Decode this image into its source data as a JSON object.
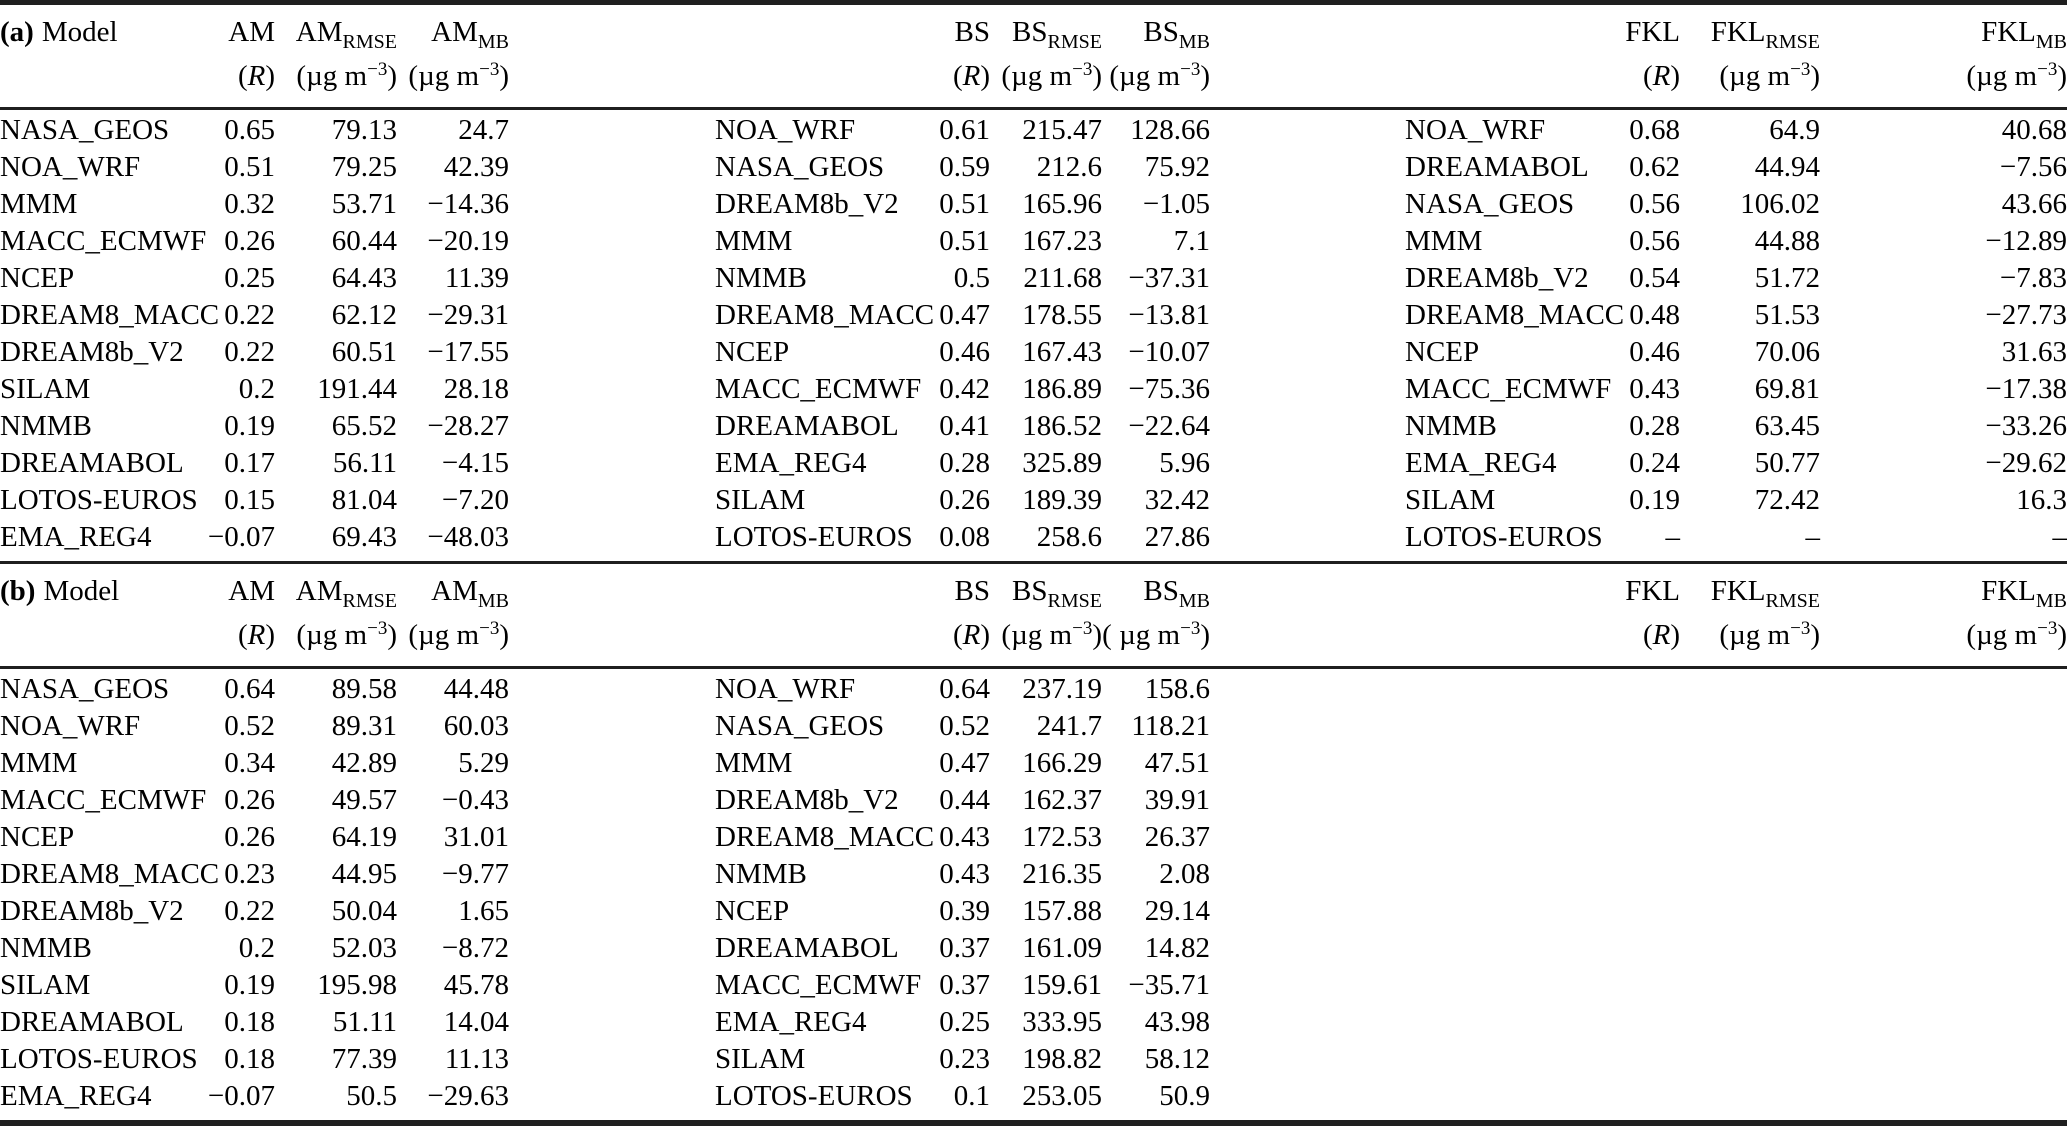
{
  "table": {
    "labels": {
      "r_pre": "(",
      "r_sym": "R",
      "r_post": ")",
      "rmse_sub": "RMSE",
      "mb_sub": "MB"
    },
    "units": {
      "standard": {
        "pre": "(µg m",
        "sup": "−3",
        "post": ")"
      },
      "spaced": {
        "pre": "( µg m",
        "sup": "−3",
        "post": ")"
      }
    },
    "sections": [
      {
        "id": "a",
        "label": "(a)",
        "model_label": "Model",
        "groups": [
          {
            "station": "AM",
            "mb_unit": "standard",
            "rows": [
              [
                "NASA_GEOS",
                "0.65",
                "79.13",
                "24.7"
              ],
              [
                "NOA_WRF",
                "0.51",
                "79.25",
                "42.39"
              ],
              [
                "MMM",
                "0.32",
                "53.71",
                "−14.36"
              ],
              [
                "MACC_ECMWF",
                "0.26",
                "60.44",
                "−20.19"
              ],
              [
                "NCEP",
                "0.25",
                "64.43",
                "11.39"
              ],
              [
                "DREAM8_MACC",
                "0.22",
                "62.12",
                "−29.31"
              ],
              [
                "DREAM8b_V2",
                "0.22",
                "60.51",
                "−17.55"
              ],
              [
                "SILAM",
                "0.2",
                "191.44",
                "28.18"
              ],
              [
                "NMMB",
                "0.19",
                "65.52",
                "−28.27"
              ],
              [
                "DREAMABOL",
                "0.17",
                "56.11",
                "−4.15"
              ],
              [
                "LOTOS-EUROS",
                "0.15",
                "81.04",
                "−7.20"
              ],
              [
                "EMA_REG4",
                "−0.07",
                "69.43",
                "−48.03"
              ]
            ]
          },
          {
            "station": "BS",
            "mb_unit": "standard",
            "rows": [
              [
                "NOA_WRF",
                "0.61",
                "215.47",
                "128.66"
              ],
              [
                "NASA_GEOS",
                "0.59",
                "212.6",
                "75.92"
              ],
              [
                "DREAM8b_V2",
                "0.51",
                "165.96",
                "−1.05"
              ],
              [
                "MMM",
                "0.51",
                "167.23",
                "7.1"
              ],
              [
                "NMMB",
                "0.5",
                "211.68",
                "−37.31"
              ],
              [
                "DREAM8_MACC",
                "0.47",
                "178.55",
                "−13.81"
              ],
              [
                "NCEP",
                "0.46",
                "167.43",
                "−10.07"
              ],
              [
                "MACC_ECMWF",
                "0.42",
                "186.89",
                "−75.36"
              ],
              [
                "DREAMABOL",
                "0.41",
                "186.52",
                "−22.64"
              ],
              [
                "EMA_REG4",
                "0.28",
                "325.89",
                "5.96"
              ],
              [
                "SILAM",
                "0.26",
                "189.39",
                "32.42"
              ],
              [
                "LOTOS-EUROS",
                "0.08",
                "258.6",
                "27.86"
              ]
            ]
          },
          {
            "station": "FKL",
            "mb_unit": "standard",
            "rows": [
              [
                "NOA_WRF",
                "0.68",
                "64.9",
                "40.68"
              ],
              [
                "DREAMABOL",
                "0.62",
                "44.94",
                "−7.56"
              ],
              [
                "NASA_GEOS",
                "0.56",
                "106.02",
                "43.66"
              ],
              [
                "MMM",
                "0.56",
                "44.88",
                "−12.89"
              ],
              [
                "DREAM8b_V2",
                "0.54",
                "51.72",
                "−7.83"
              ],
              [
                "DREAM8_MACC",
                "0.48",
                "51.53",
                "−27.73"
              ],
              [
                "NCEP",
                "0.46",
                "70.06",
                "31.63"
              ],
              [
                "MACC_ECMWF",
                "0.43",
                "69.81",
                "−17.38"
              ],
              [
                "NMMB",
                "0.28",
                "63.45",
                "−33.26"
              ],
              [
                "EMA_REG4",
                "0.24",
                "50.77",
                "−29.62"
              ],
              [
                "SILAM",
                "0.19",
                "72.42",
                "16.3"
              ],
              [
                "LOTOS-EUROS",
                "–",
                "–",
                "–"
              ]
            ]
          }
        ]
      },
      {
        "id": "b",
        "label": "(b)",
        "model_label": "Model",
        "groups": [
          {
            "station": "AM",
            "mb_unit": "standard",
            "rows": [
              [
                "NASA_GEOS",
                "0.64",
                "89.58",
                "44.48"
              ],
              [
                "NOA_WRF",
                "0.52",
                "89.31",
                "60.03"
              ],
              [
                "MMM",
                "0.34",
                "42.89",
                "5.29"
              ],
              [
                "MACC_ECMWF",
                "0.26",
                "49.57",
                "−0.43"
              ],
              [
                "NCEP",
                "0.26",
                "64.19",
                "31.01"
              ],
              [
                "DREAM8_MACC",
                "0.23",
                "44.95",
                "−9.77"
              ],
              [
                "DREAM8b_V2",
                "0.22",
                "50.04",
                "1.65"
              ],
              [
                "NMMB",
                "0.2",
                "52.03",
                "−8.72"
              ],
              [
                "SILAM",
                "0.19",
                "195.98",
                "45.78"
              ],
              [
                "DREAMABOL",
                "0.18",
                "51.11",
                "14.04"
              ],
              [
                "LOTOS-EUROS",
                "0.18",
                "77.39",
                "11.13"
              ],
              [
                "EMA_REG4",
                "−0.07",
                "50.5",
                "−29.63"
              ]
            ]
          },
          {
            "station": "BS",
            "mb_unit": "spaced",
            "rows": [
              [
                "NOA_WRF",
                "0.64",
                "237.19",
                "158.6"
              ],
              [
                "NASA_GEOS",
                "0.52",
                "241.7",
                "118.21"
              ],
              [
                "MMM",
                "0.47",
                "166.29",
                "47.51"
              ],
              [
                "DREAM8b_V2",
                "0.44",
                "162.37",
                "39.91"
              ],
              [
                "DREAM8_MACC",
                "0.43",
                "172.53",
                "26.37"
              ],
              [
                "NMMB",
                "0.43",
                "216.35",
                "2.08"
              ],
              [
                "NCEP",
                "0.39",
                "157.88",
                "29.14"
              ],
              [
                "DREAMABOL",
                "0.37",
                "161.09",
                "14.82"
              ],
              [
                "MACC_ECMWF",
                "0.37",
                "159.61",
                "−35.71"
              ],
              [
                "EMA_REG4",
                "0.25",
                "333.95",
                "43.98"
              ],
              [
                "SILAM",
                "0.23",
                "198.82",
                "58.12"
              ],
              [
                "LOTOS-EUROS",
                "0.1",
                "253.05",
                "50.9"
              ]
            ]
          },
          {
            "station": "FKL",
            "mb_unit": "standard",
            "rows": []
          }
        ]
      }
    ]
  }
}
